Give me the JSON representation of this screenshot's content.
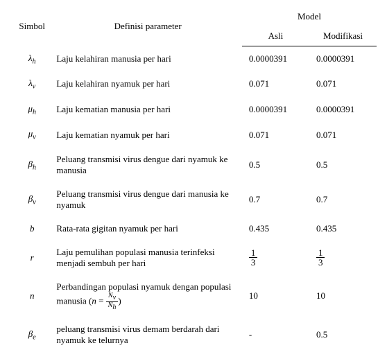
{
  "header": {
    "simbol": "Simbol",
    "definisi": "Definisi parameter",
    "model": "Model",
    "asli": "Asli",
    "modifikasi": "Modifikasi"
  },
  "rows": [
    {
      "symbol_base": "λ",
      "symbol_sub": "h",
      "definisi": "Laju kelahiran manusia per hari",
      "asli": "0.0000391",
      "modifikasi": "0.0000391"
    },
    {
      "symbol_base": "λ",
      "symbol_sub": "v",
      "definisi": "Laju kelahiran nyamuk per hari",
      "asli": "0.071",
      "modifikasi": "0.071"
    },
    {
      "symbol_base": "μ",
      "symbol_sub": "h",
      "definisi": "Laju kematian manusia per hari",
      "asli": "0.0000391",
      "modifikasi": "0.0000391"
    },
    {
      "symbol_base": "μ",
      "symbol_sub": "v",
      "definisi": "Laju kematian nyamuk per hari",
      "asli": "0.071",
      "modifikasi": "0.071"
    },
    {
      "symbol_base": "β",
      "symbol_sub": "h",
      "definisi": "Peluang transmisi virus dengue dari nyamuk ke manusia",
      "asli": "0.5",
      "modifikasi": "0.5"
    },
    {
      "symbol_base": "β",
      "symbol_sub": "v",
      "definisi": "Peluang transmisi virus dengue dari manusia ke nyamuk",
      "asli": "0.7",
      "modifikasi": "0.7"
    },
    {
      "symbol_base": "b",
      "symbol_sub": "",
      "definisi": "Rata-rata gigitan nyamuk per hari",
      "asli": "0.435",
      "modifikasi": "0.435"
    },
    {
      "symbol_base": "r",
      "symbol_sub": "",
      "definisi": "Laju pemulihan populasi manusia terinfeksi menjadi sembuh per hari",
      "asli_frac_num": "1",
      "asli_frac_den": "3",
      "modifikasi_frac_num": "1",
      "modifikasi_frac_den": "3"
    },
    {
      "symbol_base": "n",
      "symbol_sub": "",
      "definisi_prefix": "Perbandingan populasi nyamuk dengan populasi manusia (",
      "definisi_eq_n": "n",
      "definisi_eq_eq": " = ",
      "definisi_eq_num_base": "N",
      "definisi_eq_num_sub": "v",
      "definisi_eq_den_base": "N",
      "definisi_eq_den_sub": "h",
      "definisi_suffix": ")",
      "asli": "10",
      "modifikasi": "10"
    },
    {
      "symbol_base": "β",
      "symbol_sub": "e",
      "definisi": "peluang transmisi virus demam berdarah dari nyamuk ke telurnya",
      "asli": "-",
      "modifikasi": "0.5"
    }
  ]
}
